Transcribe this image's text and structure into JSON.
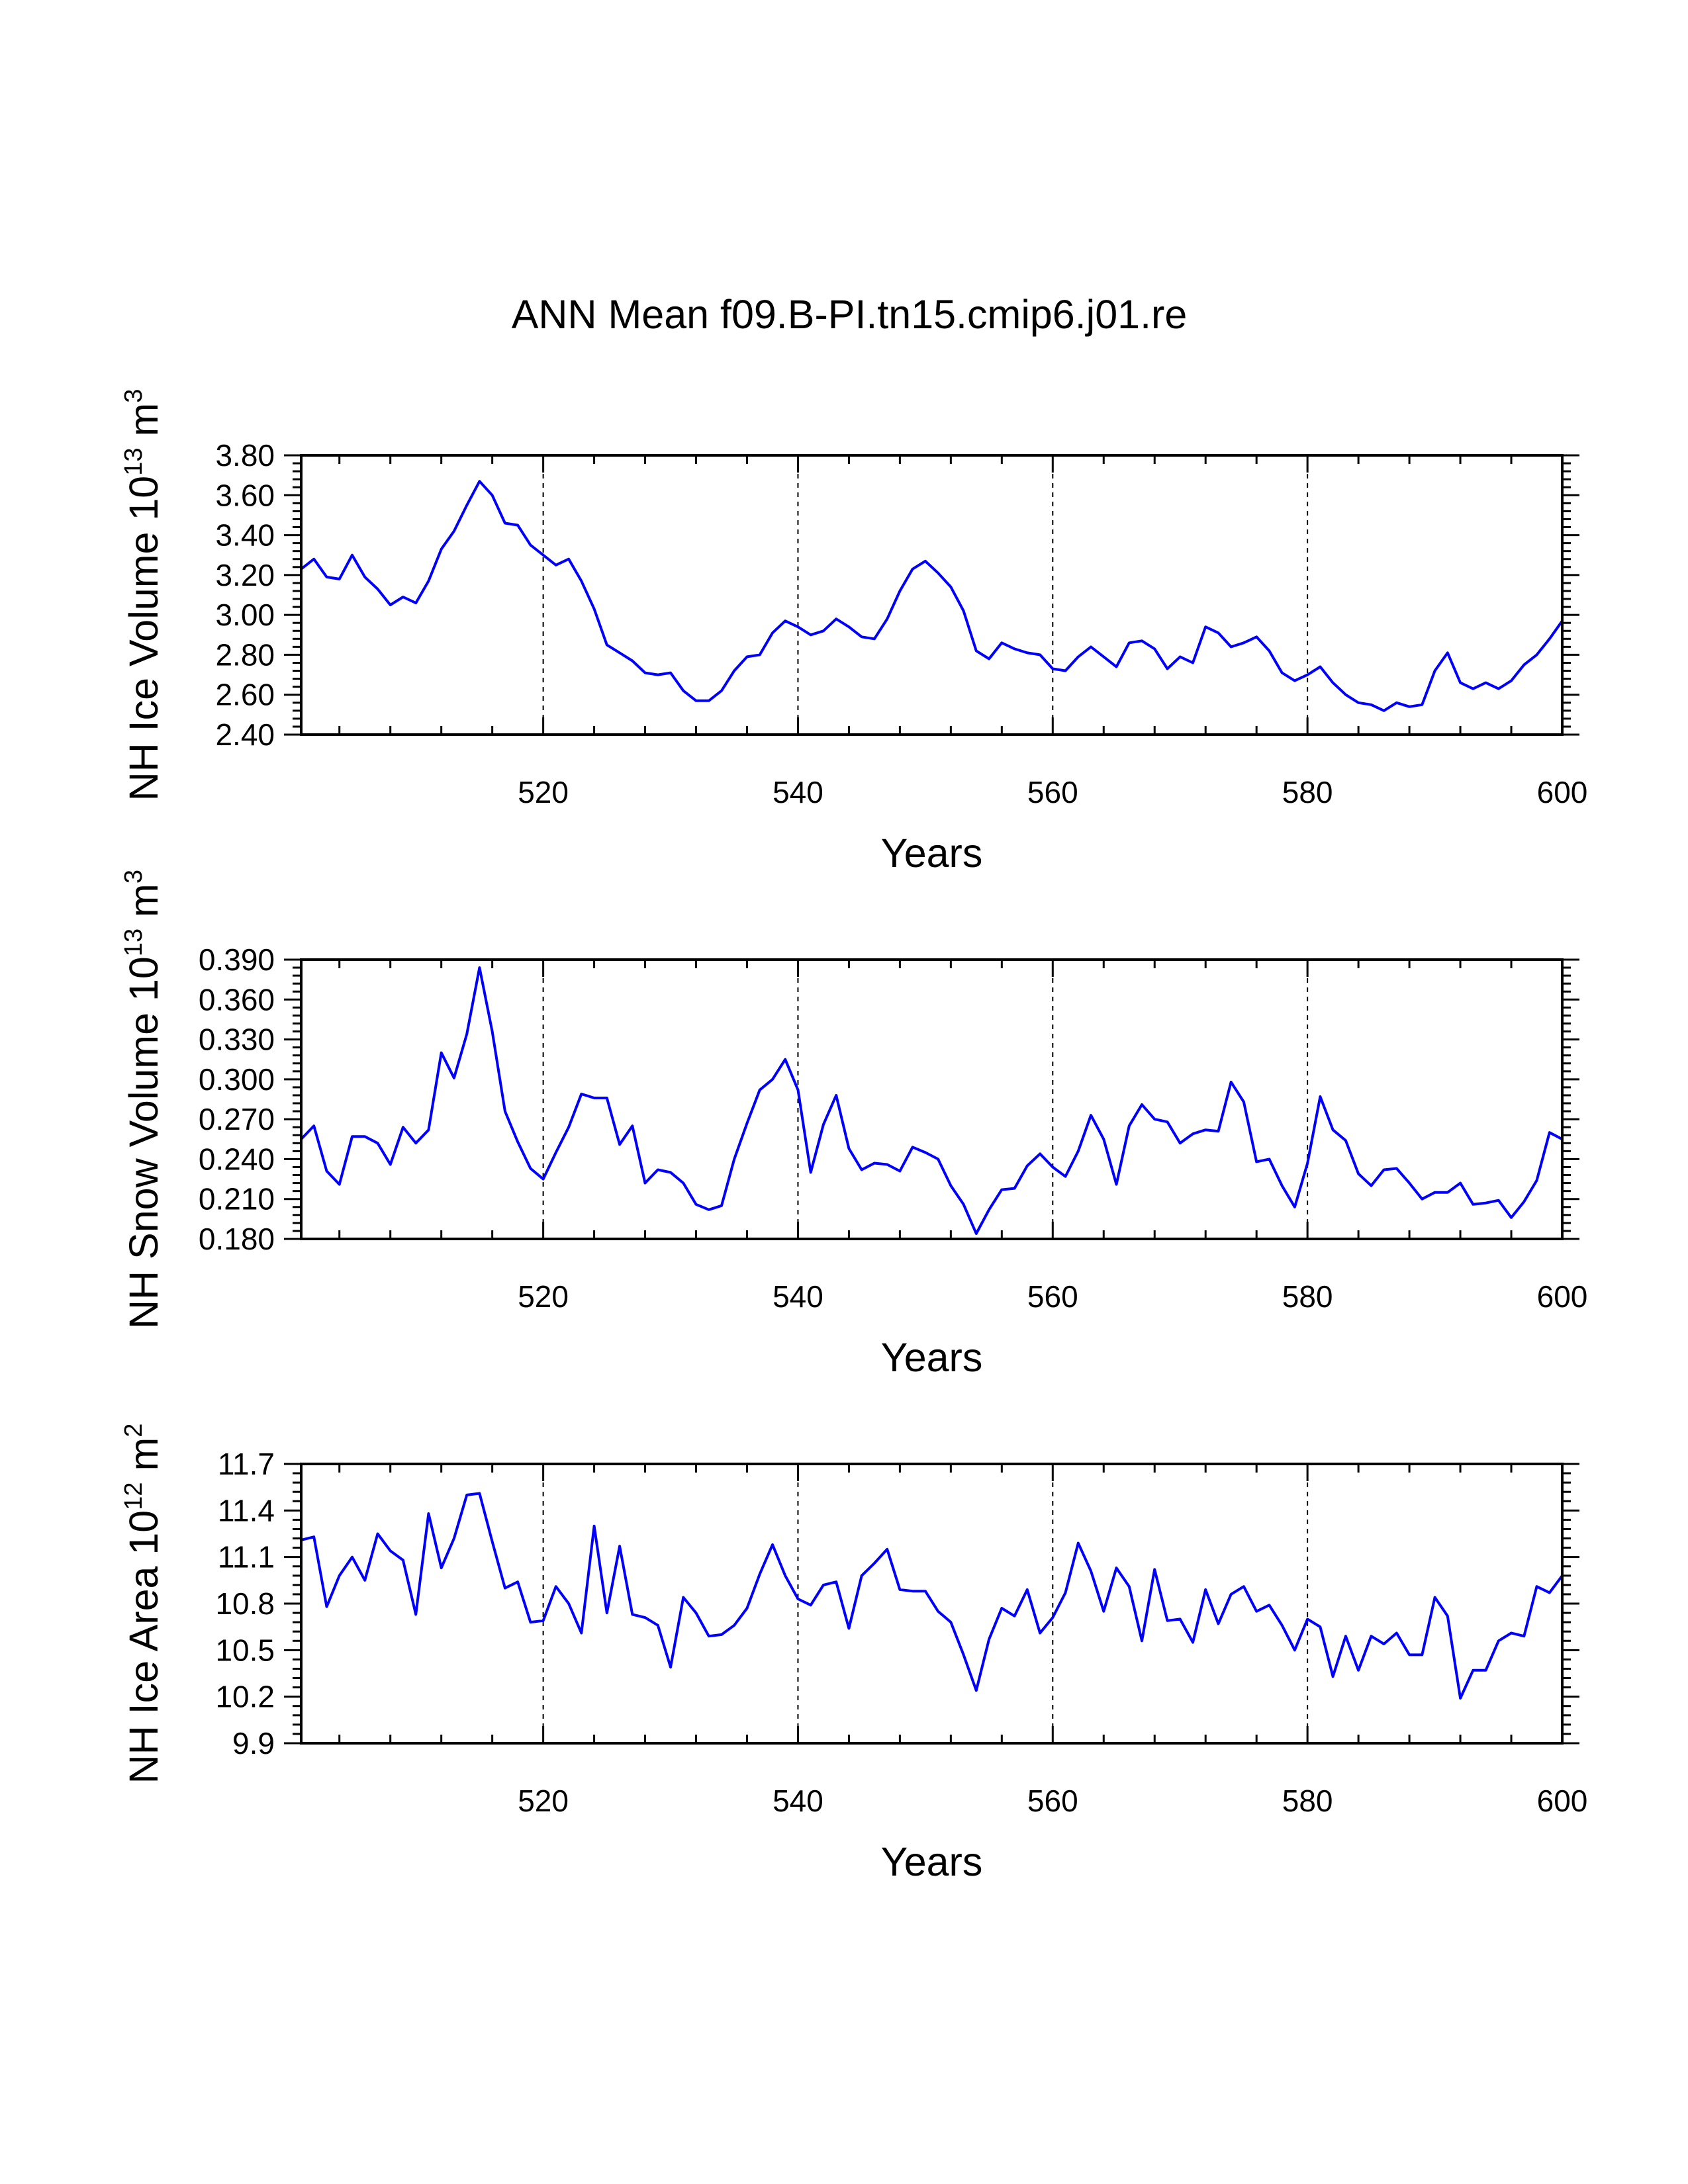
{
  "figure": {
    "title": "ANN Mean f09.B-PI.tn15.cmip6.j01.re",
    "line_color": "#0000ff",
    "axis_color": "#000000",
    "background": "#ffffff"
  },
  "chart_data": [
    {
      "type": "line",
      "xlabel": "Years",
      "ylabel": {
        "main": "NH Ice Volume 10",
        "exp": "13",
        "unit": " m",
        "unit_exp": "3"
      },
      "xlim": [
        501,
        600
      ],
      "ylim": [
        2.4,
        3.8
      ],
      "xticks": [
        520,
        540,
        560,
        580,
        600
      ],
      "yticks": [
        "2.40",
        "2.60",
        "2.80",
        "3.00",
        "3.20",
        "3.40",
        "3.60",
        "3.80"
      ],
      "grid": "dashed vertical lines at 520, 540, 560, 580",
      "series": [
        {
          "x_start": 501,
          "values": [
            3.23,
            3.28,
            3.19,
            3.18,
            3.3,
            3.19,
            3.13,
            3.05,
            3.09,
            3.06,
            3.17,
            3.33,
            3.42,
            3.55,
            3.67,
            3.6,
            3.46,
            3.45,
            3.35,
            3.3,
            3.25,
            3.28,
            3.17,
            3.03,
            2.85,
            2.81,
            2.77,
            2.71,
            2.7,
            2.71,
            2.62,
            2.57,
            2.57,
            2.62,
            2.72,
            2.79,
            2.8,
            2.91,
            2.97,
            2.94,
            2.9,
            2.92,
            2.98,
            2.94,
            2.89,
            2.88,
            2.98,
            3.12,
            3.23,
            3.27,
            3.21,
            3.14,
            3.02,
            2.82,
            2.78,
            2.86,
            2.83,
            2.81,
            2.8,
            2.73,
            2.72,
            2.79,
            2.84,
            2.79,
            2.74,
            2.86,
            2.87,
            2.83,
            2.73,
            2.79,
            2.76,
            2.94,
            2.91,
            2.84,
            2.86,
            2.89,
            2.82,
            2.71,
            2.67,
            2.7,
            2.74,
            2.66,
            2.6,
            2.56,
            2.55,
            2.52,
            2.56,
            2.54,
            2.55,
            2.72,
            2.81,
            2.66,
            2.63,
            2.66,
            2.63,
            2.67,
            2.75,
            2.8,
            2.88,
            2.97
          ]
        }
      ]
    },
    {
      "type": "line",
      "xlabel": "Years",
      "ylabel": {
        "main": "NH Snow Volume 10",
        "exp": "13",
        "unit": " m",
        "unit_exp": "3"
      },
      "xlim": [
        501,
        600
      ],
      "ylim": [
        0.18,
        0.39
      ],
      "xticks": [
        520,
        540,
        560,
        580,
        600
      ],
      "yticks": [
        "0.180",
        "0.210",
        "0.240",
        "0.270",
        "0.300",
        "0.330",
        "0.360",
        "0.390"
      ],
      "grid": "dashed vertical lines at 520, 540, 560, 580",
      "series": [
        {
          "x_start": 501,
          "values": [
            0.255,
            0.265,
            0.231,
            0.221,
            0.257,
            0.257,
            0.252,
            0.236,
            0.264,
            0.252,
            0.262,
            0.32,
            0.301,
            0.334,
            0.384,
            0.336,
            0.276,
            0.253,
            0.233,
            0.225,
            0.245,
            0.264,
            0.289,
            0.286,
            0.286,
            0.251,
            0.265,
            0.222,
            0.232,
            0.23,
            0.222,
            0.206,
            0.202,
            0.205,
            0.24,
            0.267,
            0.292,
            0.3,
            0.315,
            0.292,
            0.23,
            0.266,
            0.288,
            0.248,
            0.232,
            0.237,
            0.236,
            0.231,
            0.249,
            0.245,
            0.24,
            0.22,
            0.206,
            0.184,
            0.202,
            0.217,
            0.218,
            0.235,
            0.244,
            0.234,
            0.227,
            0.246,
            0.273,
            0.255,
            0.221,
            0.265,
            0.281,
            0.27,
            0.268,
            0.252,
            0.259,
            0.262,
            0.261,
            0.298,
            0.283,
            0.238,
            0.24,
            0.22,
            0.204,
            0.237,
            0.287,
            0.262,
            0.254,
            0.229,
            0.22,
            0.232,
            0.233,
            0.222,
            0.21,
            0.215,
            0.215,
            0.222,
            0.206,
            0.207,
            0.209,
            0.196,
            0.208,
            0.224,
            0.26,
            0.255
          ]
        }
      ]
    },
    {
      "type": "line",
      "xlabel": "Years",
      "ylabel": {
        "main": "NH Ice Area 10",
        "exp": "12",
        "unit": " m",
        "unit_exp": "2"
      },
      "xlim": [
        501,
        600
      ],
      "ylim": [
        9.9,
        11.7
      ],
      "xticks": [
        520,
        540,
        560,
        580,
        600
      ],
      "yticks": [
        "9.9",
        "10.2",
        "10.5",
        "10.8",
        "11.1",
        "11.4",
        "11.7"
      ],
      "grid": "dashed vertical lines at 520, 540, 560, 580",
      "series": [
        {
          "x_start": 501,
          "values": [
            11.21,
            11.23,
            10.78,
            10.98,
            11.1,
            10.95,
            11.25,
            11.14,
            11.08,
            10.73,
            11.38,
            11.03,
            11.22,
            11.5,
            11.51,
            11.2,
            10.9,
            10.94,
            10.68,
            10.69,
            10.91,
            10.8,
            10.61,
            11.3,
            10.74,
            11.17,
            10.73,
            10.71,
            10.66,
            10.39,
            10.84,
            10.74,
            10.59,
            10.6,
            10.66,
            10.77,
            10.99,
            11.18,
            10.98,
            10.83,
            10.79,
            10.92,
            10.94,
            10.64,
            10.98,
            11.06,
            11.15,
            10.89,
            10.88,
            10.88,
            10.75,
            10.68,
            10.47,
            10.24,
            10.57,
            10.77,
            10.72,
            10.89,
            10.61,
            10.71,
            10.87,
            11.19,
            11.01,
            10.75,
            11.03,
            10.91,
            10.56,
            11.02,
            10.69,
            10.7,
            10.55,
            10.89,
            10.67,
            10.86,
            10.91,
            10.75,
            10.79,
            10.66,
            10.5,
            10.7,
            10.65,
            10.33,
            10.59,
            10.37,
            10.59,
            10.54,
            10.61,
            10.47,
            10.47,
            10.84,
            10.72,
            10.19,
            10.37,
            10.37,
            10.56,
            10.61,
            10.59,
            10.91,
            10.87,
            10.98
          ]
        }
      ]
    }
  ]
}
